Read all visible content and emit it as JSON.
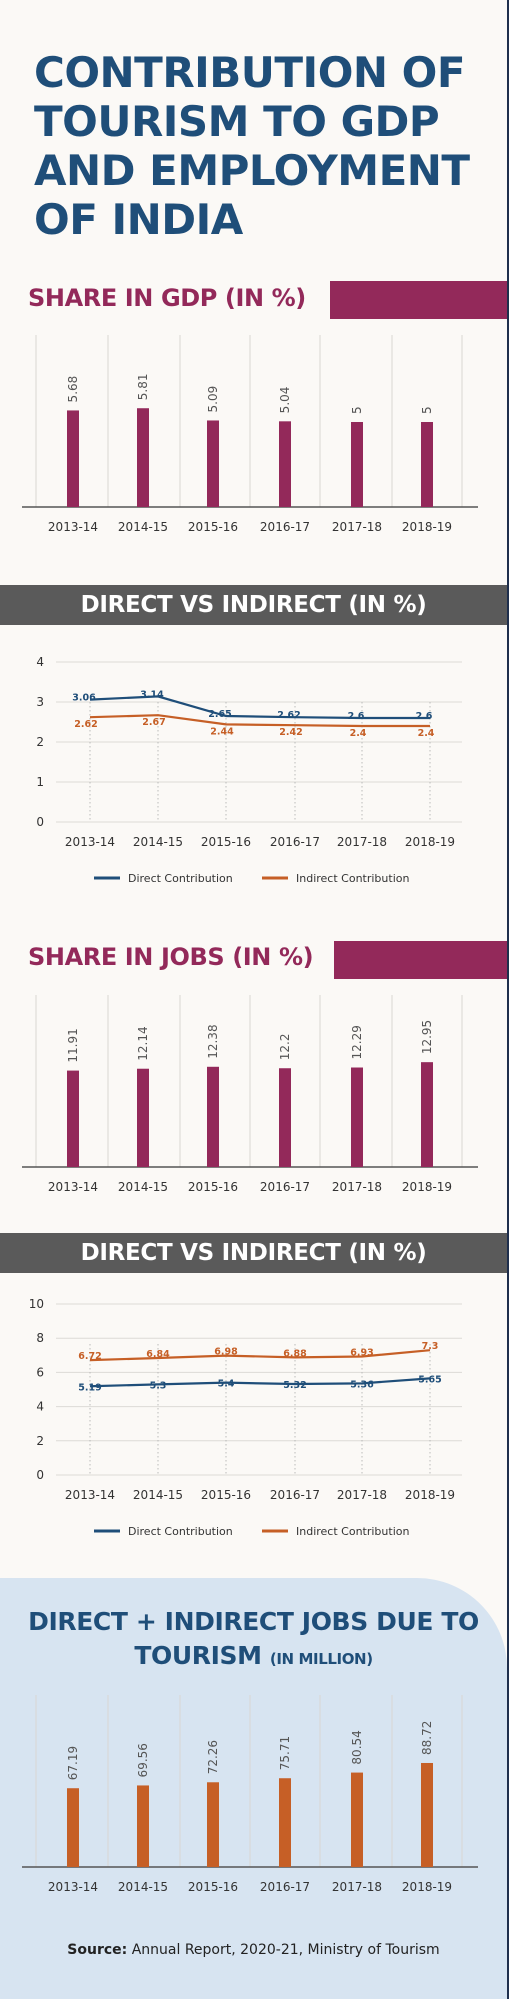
{
  "title": "CONTRIBUTION OF TOURISM TO GDP AND EMPLOYMENT OF INDIA",
  "colors": {
    "magenta": "#93295a",
    "navy": "#1f4e79",
    "orange": "#c65f26",
    "grey_band": "#5a5a5a",
    "panel": "#d7e4f1"
  },
  "sections": {
    "gdp_share": "SHARE IN GDP (IN %)",
    "gdp_direct_indirect": "DIRECT VS INDIRECT (IN %)",
    "jobs_share": "SHARE IN JOBS (IN %)",
    "jobs_direct_indirect": "DIRECT VS INDIRECT (IN %)",
    "jobs_total": "DIRECT + INDIRECT JOBS DUE TO TOURISM",
    "jobs_total_unit": "(IN MILLION)"
  },
  "source": {
    "label": "Source:",
    "text": "Annual Report, 2020-21, Ministry of Tourism"
  },
  "chart_data": [
    {
      "type": "bar",
      "title": "SHARE IN GDP (IN %)",
      "categories": [
        "2013-14",
        "2014-15",
        "2015-16",
        "2016-17",
        "2017-18",
        "2018-19"
      ],
      "values": [
        5.68,
        5.81,
        5.09,
        5.04,
        5,
        5
      ],
      "labels": [
        "5.68",
        "5.81",
        "5.09",
        "5.04",
        "5",
        "5"
      ],
      "ylim": [
        0,
        10
      ],
      "color": "#93295a",
      "grid": "vertical"
    },
    {
      "type": "line",
      "title": "DIRECT VS INDIRECT (IN %)",
      "categories": [
        "2013-14",
        "2014-15",
        "2015-16",
        "2016-17",
        "2017-18",
        "2018-19"
      ],
      "series": [
        {
          "name": "Direct Contribution",
          "color": "#1f4e79",
          "values": [
            3.06,
            3.14,
            2.65,
            2.62,
            2.6,
            2.6
          ],
          "labels": [
            "3.06",
            "3.14",
            "2.65",
            "2.62",
            "2.6",
            "2.6"
          ]
        },
        {
          "name": "Indirect Contribution",
          "color": "#c65f26",
          "values": [
            2.62,
            2.67,
            2.44,
            2.42,
            2.4,
            2.4
          ],
          "labels": [
            "2.62",
            "2.67",
            "2.44",
            "2.42",
            "2.4",
            "2.4"
          ]
        }
      ],
      "yticks": [
        "0",
        "1",
        "2",
        "3",
        "4"
      ],
      "ylim": [
        0,
        4
      ],
      "legend": "bottom"
    },
    {
      "type": "bar",
      "title": "SHARE IN JOBS (IN %)",
      "categories": [
        "2013-14",
        "2014-15",
        "2015-16",
        "2016-17",
        "2017-18",
        "2018-19"
      ],
      "values": [
        11.91,
        12.14,
        12.38,
        12.2,
        12.29,
        12.95
      ],
      "labels": [
        "11.91",
        "12.14",
        "12.38",
        "12.2",
        "12.29",
        "12.95"
      ],
      "ylim": [
        0,
        21
      ],
      "color": "#93295a",
      "grid": "vertical"
    },
    {
      "type": "line",
      "title": "DIRECT VS INDIRECT (IN %)",
      "categories": [
        "2013-14",
        "2014-15",
        "2015-16",
        "2016-17",
        "2017-18",
        "2018-19"
      ],
      "series": [
        {
          "name": "Direct Contribution",
          "color": "#1f4e79",
          "values": [
            5.19,
            5.3,
            5.4,
            5.32,
            5.36,
            5.65
          ],
          "labels": [
            "5.19",
            "5.3",
            "5.4",
            "5.32",
            "5.36",
            "5.65"
          ]
        },
        {
          "name": "Indirect Contribution",
          "color": "#c65f26",
          "values": [
            6.72,
            6.84,
            6.98,
            6.88,
            6.93,
            7.3
          ],
          "labels": [
            "6.72",
            "6.84",
            "6.98",
            "6.88",
            "6.93",
            "7.3"
          ]
        }
      ],
      "yticks": [
        "0",
        "2",
        "4",
        "6",
        "8",
        "10"
      ],
      "ylim": [
        0,
        10
      ],
      "legend": "bottom"
    },
    {
      "type": "bar",
      "title": "DIRECT + INDIRECT JOBS DUE TO TOURISM (IN MILLION)",
      "categories": [
        "2013-14",
        "2014-15",
        "2015-16",
        "2016-17",
        "2017-18",
        "2018-19"
      ],
      "values": [
        67.19,
        69.56,
        72.26,
        75.71,
        80.54,
        88.72
      ],
      "labels": [
        "67.19",
        "69.56",
        "72.26",
        "75.71",
        "80.54",
        "88.72"
      ],
      "ylim": [
        0,
        145
      ],
      "color": "#c65f26",
      "grid": "vertical"
    }
  ]
}
